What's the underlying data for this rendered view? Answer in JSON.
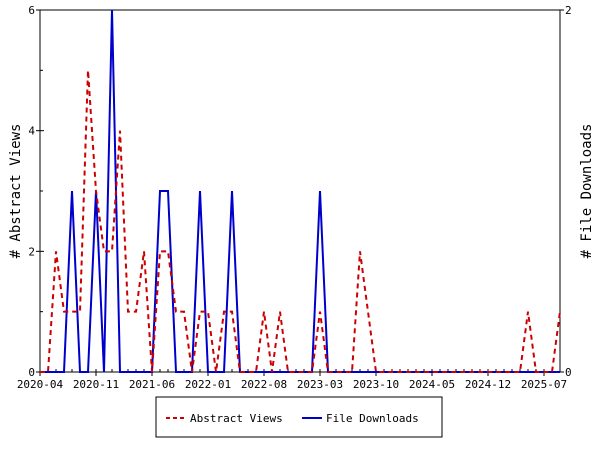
{
  "chart_data": {
    "type": "line",
    "title": "",
    "x_start_month": "2020-04",
    "x": [
      "2020-04",
      "2020-05",
      "2020-06",
      "2020-07",
      "2020-08",
      "2020-09",
      "2020-10",
      "2020-11",
      "2020-12",
      "2021-01",
      "2021-02",
      "2021-03",
      "2021-04",
      "2021-05",
      "2021-06",
      "2021-07",
      "2021-08",
      "2021-09",
      "2021-10",
      "2021-11",
      "2021-12",
      "2022-01",
      "2022-02",
      "2022-03",
      "2022-04",
      "2022-05",
      "2022-06",
      "2022-07",
      "2022-08",
      "2022-09",
      "2022-10",
      "2022-11",
      "2022-12",
      "2023-01",
      "2023-02",
      "2023-03",
      "2023-04",
      "2023-05",
      "2023-06",
      "2023-07",
      "2023-08",
      "2023-09",
      "2023-10",
      "2023-11",
      "2023-12",
      "2024-01",
      "2024-02",
      "2024-03",
      "2024-04",
      "2024-05",
      "2024-06",
      "2024-07",
      "2024-08",
      "2024-09",
      "2024-10",
      "2024-11",
      "2024-12",
      "2025-01",
      "2025-02",
      "2025-03",
      "2025-04",
      "2025-05",
      "2025-06",
      "2025-07",
      "2025-08",
      "2025-09"
    ],
    "xticks": [
      "2020-04",
      "2020-11",
      "2021-06",
      "2022-01",
      "2022-08",
      "2023-03",
      "2023-10",
      "2024-05",
      "2024-12",
      "2025-07"
    ],
    "ylabel_left": "# Abstract Views",
    "ylabel_right": "# File Downloads",
    "ylim_left": [
      0,
      6
    ],
    "ylim_right": [
      0,
      2
    ],
    "yticks_left": [
      "0",
      "2",
      "4",
      "6"
    ],
    "yticks_right": [
      "0",
      "2"
    ],
    "series": [
      {
        "name": "Abstract Views",
        "axis": "left",
        "color": "#cc0000",
        "style": "dashed",
        "values": [
          0,
          0,
          2,
          1,
          1,
          1,
          5,
          3,
          2,
          2,
          4,
          1,
          1,
          2,
          0,
          2,
          2,
          1,
          1,
          0,
          1,
          1,
          0,
          1,
          1,
          0,
          0,
          0,
          1,
          0,
          1,
          0,
          0,
          0,
          0,
          1,
          0,
          0,
          0,
          0,
          2,
          1,
          0,
          0,
          0,
          0,
          0,
          0,
          0,
          0,
          0,
          0,
          0,
          0,
          0,
          0,
          0,
          0,
          0,
          0,
          0,
          1,
          0,
          0,
          0,
          1
        ]
      },
      {
        "name": "File Downloads",
        "axis": "right",
        "color": "#0000cc",
        "style": "solid",
        "values": [
          0,
          0,
          0,
          0,
          1,
          0,
          0,
          1,
          0,
          2,
          0,
          0,
          0,
          0,
          0,
          1,
          1,
          0,
          0,
          0,
          1,
          0,
          0,
          0,
          1,
          0,
          0,
          0,
          0,
          0,
          0,
          0,
          0,
          0,
          0,
          1,
          0,
          0,
          0,
          0,
          0,
          0,
          0,
          0,
          0,
          0,
          0,
          0,
          0,
          0,
          0,
          0,
          0,
          0,
          0,
          0,
          0,
          0,
          0,
          0,
          0,
          0,
          0,
          0,
          0,
          0
        ]
      }
    ],
    "legend": "bottom-center",
    "grid": false
  }
}
